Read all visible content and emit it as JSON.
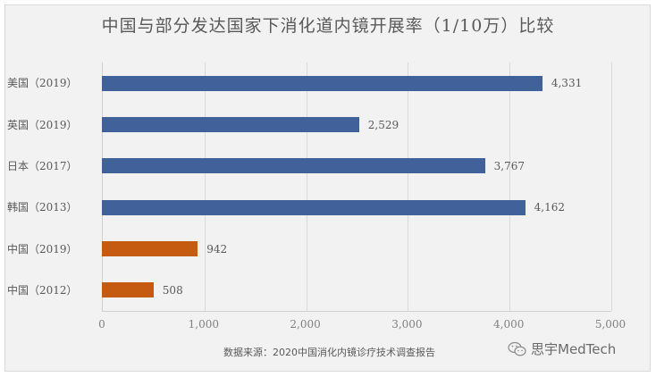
{
  "chart_data": {
    "type": "bar",
    "orientation": "horizontal",
    "title": "中国与部分发达国家下消化道内镜开展率（1/10万）比较",
    "xlabel": "",
    "ylabel": "",
    "xlim": [
      0,
      5000
    ],
    "grid": true,
    "categories": [
      "美国（2019）",
      "英国（2019）",
      "日本（2017）",
      "韩国（2013）",
      "中国（2019）",
      "中国（2012）"
    ],
    "values": [
      4331,
      2529,
      3767,
      4162,
      942,
      508
    ],
    "value_labels": [
      "4,331",
      "2,529",
      "3,767",
      "4,162",
      "942",
      "508"
    ],
    "bar_colors": [
      "#41619b",
      "#41619b",
      "#41619b",
      "#41619b",
      "#c55a11",
      "#c55a11"
    ],
    "x_ticks": [
      "0",
      "1,000",
      "2,000",
      "3,000",
      "4,000",
      "5,000"
    ],
    "legend": null,
    "annotations": [
      "数据来源：2020中国消化内镜诊疗技术调查报告"
    ]
  },
  "footer": {
    "source": "数据来源：2020中国消化内镜诊疗技术调查报告",
    "brand": "思宇MedTech"
  },
  "colors": {
    "developed": "#41619b",
    "china": "#c55a11",
    "background": "#f2f2f2"
  }
}
